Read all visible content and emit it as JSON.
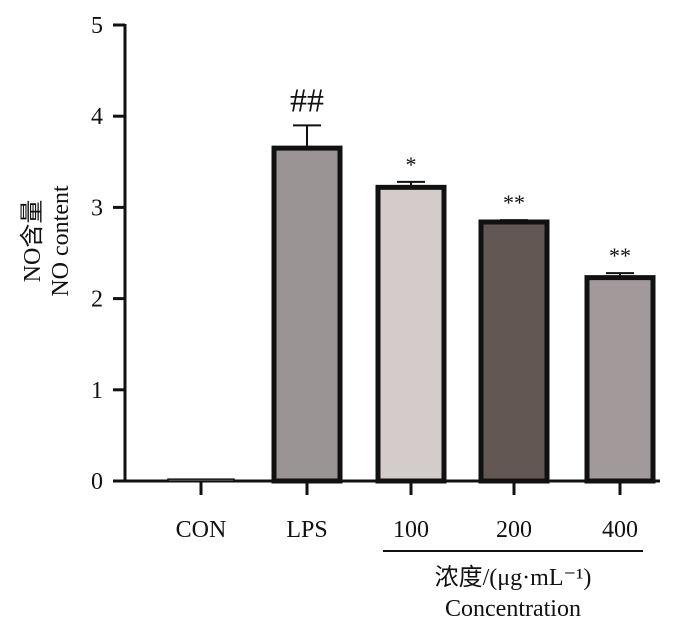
{
  "chart_data": {
    "type": "bar",
    "categories": [
      "CON",
      "LPS",
      "100",
      "200",
      "400"
    ],
    "values": [
      0.02,
      3.65,
      3.22,
      2.84,
      2.23
    ],
    "errors": [
      0.0,
      0.25,
      0.06,
      0.02,
      0.05
    ],
    "bar_colors": [
      "#ffffff",
      "#9a9494",
      "#d4cbcb",
      "#625753",
      "#a29a9a"
    ],
    "annotations": [
      "",
      "##",
      "*",
      "**",
      "**"
    ],
    "ylabel_lines": [
      "NO含量",
      "NO content"
    ],
    "xgroup_label_lines": [
      "浓度/(μg·mL⁻¹)",
      "Concentration"
    ],
    "ylim": [
      0,
      5
    ],
    "yticks": [
      "0",
      "1",
      "2",
      "3",
      "4",
      "5"
    ]
  }
}
